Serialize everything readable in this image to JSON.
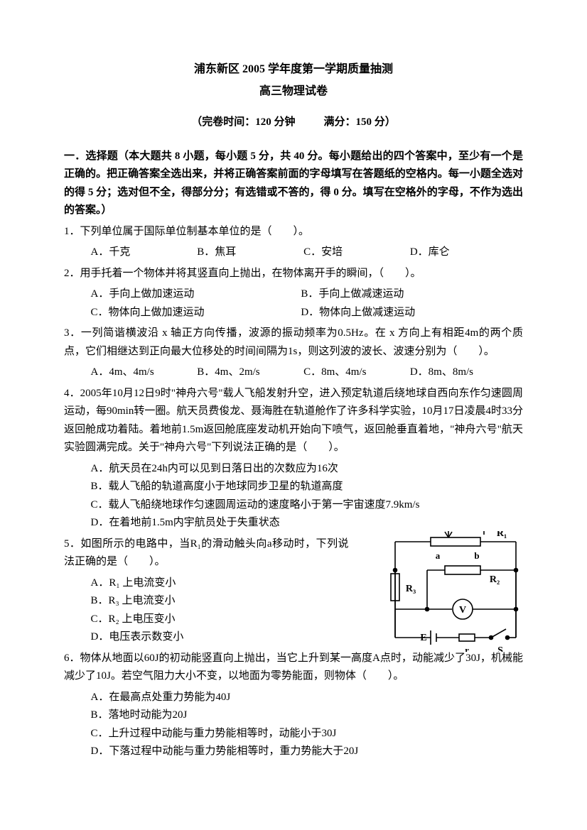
{
  "header": {
    "title": "浦东新区 2005 学年度第一学期质量抽测",
    "subtitle": "高三物理试卷",
    "meta_left": "（完卷时间：120 分钟",
    "meta_right": "满分：150 分）"
  },
  "section1": {
    "heading": "一．选择题（本大题共 8 小题，每小题 5 分，共 40 分。每小题给出的四个答案中，至少有一个是正确的。把正确答案全选出来，并将正确答案前面的字母填写在答题纸的空格内。每一小题全选对的得 5 分；选对但不全，得部分分；有选错或不答的，得 0 分。填写在空格外的字母，不作为选出的答案。）"
  },
  "q1": {
    "stem": "1．下列单位属于国际单位制基本单位的是（　　）。",
    "a": "A．千克",
    "b": "B．焦耳",
    "c": "C．安培",
    "d": "D．库仑"
  },
  "q2": {
    "stem": "2．用手托着一个物体并将其竖直向上抛出，在物体离开手的瞬间，（　　）。",
    "a": "A．手向上做加速运动",
    "b": "B．手向上做减速运动",
    "c": "C．物体向上做加速运动",
    "d": "D．物体向上做减速运动"
  },
  "q3": {
    "stem": "3．一列简谐横波沿 x 轴正方向传播，波源的振动频率为0.5Hz。在 x 方向上有相距4m的两个质点，它们相继达到正向最大位移处的时间间隔为1s，则这列波的波长、波速分别为（　　）。",
    "a": "A．4m、4m/s",
    "b": "B．4m、2m/s",
    "c": "C．8m、4m/s",
    "d": "D．8m、8m/s"
  },
  "q4": {
    "stem": "4．2005年10月12日9时\"神舟六号\"载人飞船发射升空，进入预定轨道后绕地球自西向东作匀速圆周运动，每90min转一圈。航天员费俊龙、聂海胜在轨道舱作了许多科学实验，10月17日凌晨4时33分返回舱成功着陆。着地前1.5m返回舱底座发动机开始向下喷气，返回舱垂直着地，\"神舟六号\"航天实验圆满完成。关于\"神舟六号\"下列说法正确的是（　　）。",
    "a": "A．航天员在24h内可以见到日落日出的次数应为16次",
    "b": "B．载人飞船的轨道高度小于地球同步卫星的轨道高度",
    "c": "C．载人飞船绕地球作匀速圆周运动的速度略小于第一宇宙速度7.9km/s",
    "d": "D．在着地前1.5m内宇航员处于失重状态"
  },
  "q5": {
    "stem": "5．如图所示的电路中，当R₁的滑动触头向a移动时，下列说法正确的是（　　）。",
    "a": "A．R₁ 上电流变小",
    "b": "B．R₃ 上电流变小",
    "c": "C．R₂ 上电压变小",
    "d": "D．电压表示数变小",
    "circuit": {
      "labels": {
        "R1": "R₁",
        "R2": "R₂",
        "R3": "R₃",
        "a": "a",
        "b": "b",
        "V": "V",
        "E": "E",
        "r": "r",
        "S": "S"
      },
      "colors": {
        "stroke": "#000000",
        "fill_bg": "#ffffff"
      },
      "stroke_width": 1.6
    }
  },
  "q6": {
    "stem": "6．物体从地面以60J的初动能竖直向上抛出，当它上升到某一高度A点时，动能减少了30J，机械能减少了10J。若空气阻力大小不变，以地面为零势能面，则物体（　　）。",
    "a": "A．在最高点处重力势能为40J",
    "b": "B．落地时动能为20J",
    "c": "C．上升过程中动能与重力势能相等时，动能小于30J",
    "d": "D．下落过程中动能与重力势能相等时，重力势能大于20J"
  }
}
